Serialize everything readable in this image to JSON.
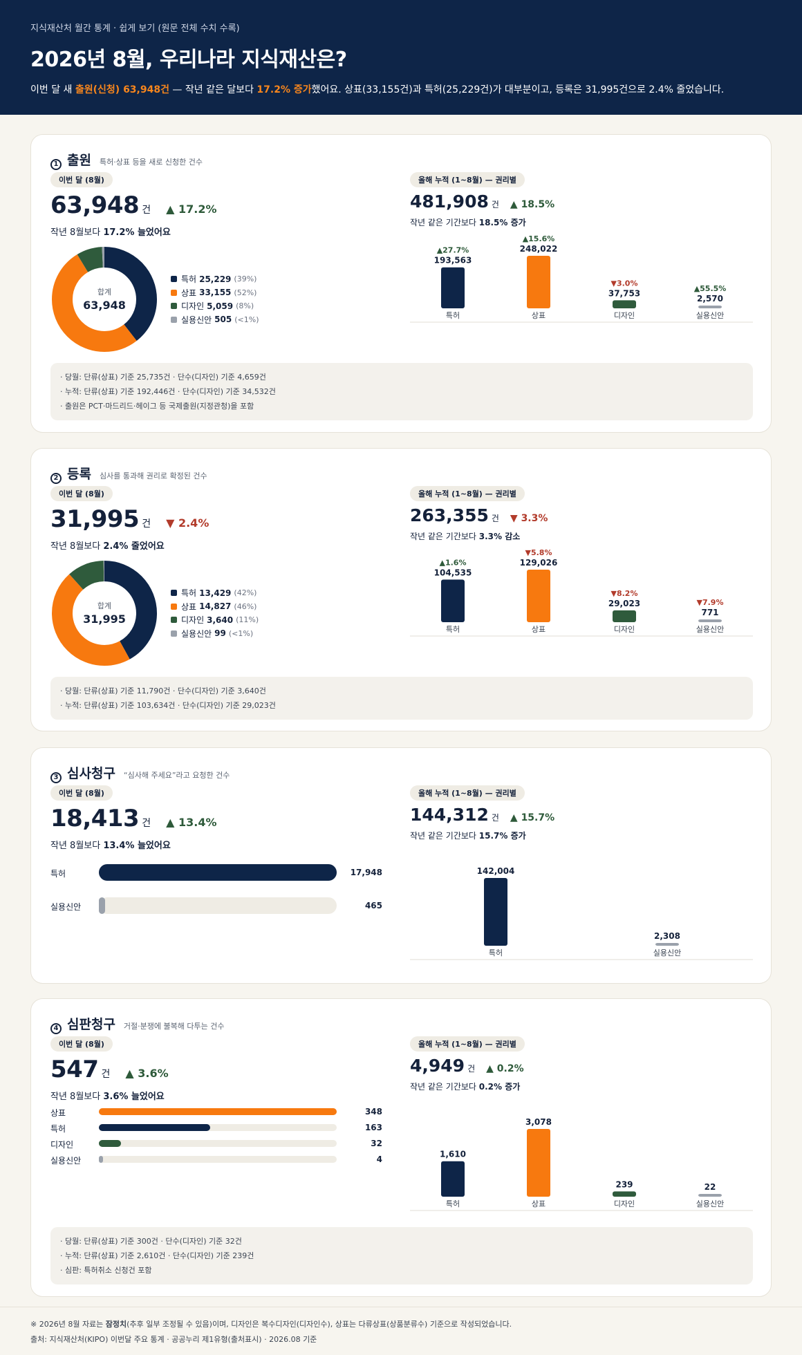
{
  "header": {
    "kicker": "지식재산처 월간 통계 · 쉽게 보기 (원문 전체 수치 수록)",
    "title": "2026년 8월, 우리나라 지식재산은?",
    "lead_1": "이번 달 새 ",
    "lead_hl1": "출원(신청) 63,948건",
    "lead_2": " — 작년 같은 달보다 ",
    "lead_hl2": "17.2% 증가",
    "lead_3": "했어요. 상표(33,155건)과 특허(25,229건)가 대부분이고, 등록은 31,995건으로 2.4% 줄었습니다."
  },
  "colors": {
    "patent": "#0e2548",
    "trademark": "#f7790f",
    "design": "#2f5b3c",
    "utility": "#9aa1ab",
    "up": "#2e5a3a",
    "down": "#b23b2b"
  },
  "sections": {
    "filing": {
      "num": "1",
      "name": "출원",
      "sub": "특허·상표 등을 새로 신청한 건수",
      "month_pill": "이번 달 (8월)",
      "value": "63,948",
      "unit": "건",
      "chg": "▲ 17.2%",
      "chg_dir": "up",
      "cmp_pre": "작년 8월보다 ",
      "cmp_b": "17.2% 늘었어요",
      "donut_label": "합계",
      "donut_total": "63,948",
      "legend": [
        {
          "name": "특허",
          "value": "25,229",
          "pct": "(39%)"
        },
        {
          "name": "상표",
          "value": "33,155",
          "pct": "(52%)"
        },
        {
          "name": "디자인",
          "value": "5,059",
          "pct": "(8%)"
        },
        {
          "name": "실용신안",
          "value": "505",
          "pct": "(<1%)"
        }
      ],
      "cum_pill": "올해 누적 (1~8월) — 권리별",
      "cum_value": "481,908",
      "cum_unit": "건",
      "cum_chg": "▲ 18.5%",
      "cum_dir": "up",
      "cum_cmp_pre": "작년 같은 기간보다 ",
      "cum_cmp_b": "18.5% 증가",
      "notes": [
        "· 당월: 단류(상표) 기준 25,735건 · 단수(디자인) 기준 4,659건",
        "· 누적: 단류(상표) 기준 192,446건 · 단수(디자인) 기준 34,532건",
        "· 출원은 PCT·마드리드·헤이그 등 국제출원(지정관청)을 포함"
      ]
    },
    "registration": {
      "num": "2",
      "name": "등록",
      "sub": "심사를 통과해 권리로 확정된 건수",
      "month_pill": "이번 달 (8월)",
      "value": "31,995",
      "unit": "건",
      "chg": "▼ 2.4%",
      "chg_dir": "down",
      "cmp_pre": "작년 8월보다 ",
      "cmp_b": "2.4% 줄었어요",
      "donut_label": "합계",
      "donut_total": "31,995",
      "legend": [
        {
          "name": "특허",
          "value": "13,429",
          "pct": "(42%)"
        },
        {
          "name": "상표",
          "value": "14,827",
          "pct": "(46%)"
        },
        {
          "name": "디자인",
          "value": "3,640",
          "pct": "(11%)"
        },
        {
          "name": "실용신안",
          "value": "99",
          "pct": "(<1%)"
        }
      ],
      "cum_pill": "올해 누적 (1~8월) — 권리별",
      "cum_value": "263,355",
      "cum_unit": "건",
      "cum_chg": "▼ 3.3%",
      "cum_dir": "down",
      "cum_cmp_pre": "작년 같은 기간보다 ",
      "cum_cmp_b": "3.3% 감소",
      "notes": [
        "· 당월: 단류(상표) 기준 11,790건 · 단수(디자인) 기준 3,640건",
        "· 누적: 단류(상표) 기준 103,634건 · 단수(디자인) 기준 29,023건"
      ]
    },
    "exam": {
      "num": "3",
      "name": "심사청구",
      "sub": "“심사해 주세요”라고 요청한 건수",
      "month_pill": "이번 달 (8월)",
      "value": "18,413",
      "unit": "건",
      "chg": "▲ 13.4%",
      "chg_dir": "up",
      "cmp_pre": "작년 8월보다 ",
      "cmp_b": "13.4% 늘었어요",
      "hbars": [
        {
          "name": "특허",
          "value": "17,948"
        },
        {
          "name": "실용신안",
          "value": "465"
        }
      ],
      "cum_pill": "올해 누적 (1~8월) — 권리별",
      "cum_value": "144,312",
      "cum_unit": "건",
      "cum_chg": "▲ 15.7%",
      "cum_dir": "up",
      "cum_cmp_pre": "작년 같은 기간보다 ",
      "cum_cmp_b": "15.7% 증가"
    },
    "trial": {
      "num": "4",
      "name": "심판청구",
      "sub": "거절·분쟁에 불복해 다투는 건수",
      "month_pill": "이번 달 (8월)",
      "value": "547",
      "unit": "건",
      "chg": "▲ 3.6%",
      "chg_dir": "up",
      "cmp_pre": "작년 8월보다 ",
      "cmp_b": "3.6% 늘었어요",
      "hbars": [
        {
          "name": "상표",
          "value": "348"
        },
        {
          "name": "특허",
          "value": "163"
        },
        {
          "name": "디자인",
          "value": "32"
        },
        {
          "name": "실용신안",
          "value": "4"
        }
      ],
      "cum_pill": "올해 누적 (1~8월) — 권리별",
      "cum_value": "4,949",
      "cum_unit": "건",
      "cum_chg": "▲ 0.2%",
      "cum_dir": "up",
      "cum_cmp_pre": "작년 같은 기간보다 ",
      "cum_cmp_b": "0.2% 증가",
      "notes": [
        "· 당월: 단류(상표) 기준 300건 · 단수(디자인) 기준 32건",
        "· 누적: 단류(상표) 기준 2,610건 · 단수(디자인) 기준 239건",
        "· 심판: 특허취소 신청건 포함"
      ]
    }
  },
  "chart_data": [
    {
      "type": "pie",
      "id": "filing_month",
      "categories": [
        "특허",
        "상표",
        "디자인",
        "실용신안"
      ],
      "values": [
        25229,
        33155,
        5059,
        505
      ]
    },
    {
      "type": "bar",
      "id": "filing_cum",
      "categories": [
        "특허",
        "상표",
        "디자인",
        "실용신안"
      ],
      "values": [
        193563,
        248022,
        37753,
        2570
      ],
      "value_labels": [
        "193,563",
        "248,022",
        "37,753",
        "2,570"
      ],
      "changes": [
        "▲27.7%",
        "▲15.6%",
        "▼3.0%",
        "▲55.5%"
      ],
      "change_dirs": [
        "up",
        "up",
        "down",
        "up"
      ]
    },
    {
      "type": "pie",
      "id": "reg_month",
      "categories": [
        "특허",
        "상표",
        "디자인",
        "실용신안"
      ],
      "values": [
        13429,
        14827,
        3640,
        99
      ]
    },
    {
      "type": "bar",
      "id": "reg_cum",
      "categories": [
        "특허",
        "상표",
        "디자인",
        "실용신안"
      ],
      "values": [
        104535,
        129026,
        29023,
        771
      ],
      "value_labels": [
        "104,535",
        "129,026",
        "29,023",
        "771"
      ],
      "changes": [
        "▲1.6%",
        "▼5.8%",
        "▼8.2%",
        "▼7.9%"
      ],
      "change_dirs": [
        "up",
        "down",
        "down",
        "down"
      ]
    },
    {
      "type": "bar",
      "id": "exam_month",
      "orientation": "horizontal",
      "categories": [
        "특허",
        "실용신안"
      ],
      "values": [
        17948,
        465
      ]
    },
    {
      "type": "bar",
      "id": "exam_cum",
      "categories": [
        "특허",
        "실용신안"
      ],
      "values": [
        142004,
        2308
      ],
      "value_labels": [
        "142,004",
        "2,308"
      ]
    },
    {
      "type": "bar",
      "id": "trial_month",
      "orientation": "horizontal",
      "categories": [
        "상표",
        "특허",
        "디자인",
        "실용신안"
      ],
      "values": [
        348,
        163,
        32,
        4
      ]
    },
    {
      "type": "bar",
      "id": "trial_cum",
      "categories": [
        "특허",
        "상표",
        "디자인",
        "실용신안"
      ],
      "values": [
        1610,
        3078,
        239,
        22
      ],
      "value_labels": [
        "1,610",
        "3,078",
        "239",
        "22"
      ]
    }
  ],
  "footer": {
    "line1_pre": "※ 2026년 8월 자료는 ",
    "line1_b": "잠정치",
    "line1_post": "(추후 일부 조정될 수 있음)이며, 디자인은 복수디자인(디자인수), 상표는 다류상표(상품분류수) 기준으로 작성되었습니다.",
    "line2": "출처: 지식재산처(KIPO) 이번달 주요 통계 · 공공누리 제1유형(출처표시) · 2026.08 기준"
  }
}
